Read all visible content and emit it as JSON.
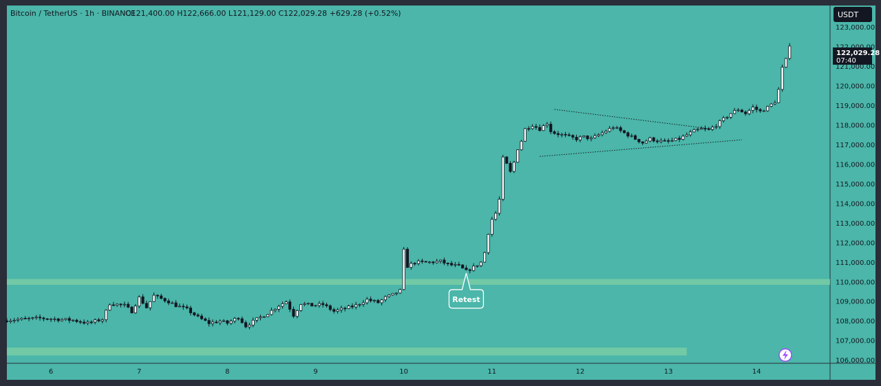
{
  "header": {
    "symbol": "Bitcoin / TetherUS · 1h · BINANCE",
    "ohlc": "O121,400.00  H122,666.00  L121,129.00  C122,029.28  +629.28 (+0.52%)"
  },
  "currency_button": "USDT",
  "last_price": {
    "price": "122,029.28",
    "countdown": "07:40"
  },
  "annotation": {
    "label": "Retest"
  },
  "colors": {
    "background": "#4bb6a9",
    "frame": "#2a2e39",
    "candle_up": "#ffffff",
    "candle_down": "#131722",
    "zone": "#7fcfa6",
    "retest_fill": "#4bb6a9",
    "lightning": "#9b4dff"
  },
  "chart_data": {
    "type": "candlestick",
    "title": "Bitcoin / TetherUS · 1h · BINANCE",
    "yaxis": {
      "ticks": [
        "123,000.00",
        "122,000.00",
        "121,000.00",
        "120,000.00",
        "119,000.00",
        "118,000.00",
        "117,000.00",
        "116,000.00",
        "115,000.00",
        "114,000.00",
        "113,000.00",
        "112,000.00",
        "111,000.00",
        "110,000.00",
        "109,000.00",
        "108,000.00",
        "107,000.00",
        "106,000.00"
      ],
      "tick_values": [
        123000,
        122000,
        121000,
        120000,
        119000,
        118000,
        117000,
        116000,
        115000,
        114000,
        113000,
        112000,
        111000,
        110000,
        109000,
        108000,
        107000,
        106000
      ],
      "range": [
        105850,
        124100
      ]
    },
    "xaxis": {
      "tick_labels": [
        "6",
        "7",
        "8",
        "9",
        "10",
        "11",
        "12",
        "13",
        "14"
      ],
      "tick_hours": [
        0,
        24,
        48,
        72,
        96,
        120,
        144,
        168,
        192
      ],
      "range_hours": [
        -12,
        212
      ]
    },
    "zones": [
      {
        "from": 109850,
        "to": 110150
      },
      {
        "from": 106250,
        "to": 106650,
        "until_hour": 173
      }
    ],
    "trendlines": [
      {
        "from": [
          137,
          118800
        ],
        "to": [
          180,
          117800
        ]
      },
      {
        "from": [
          133,
          116400
        ],
        "to": [
          188,
          117250
        ]
      }
    ],
    "annotation_point": {
      "hour": 113,
      "price": 110450
    },
    "anchors": [
      [
        -12,
        108050
      ],
      [
        -3,
        108150
      ],
      [
        6,
        108050
      ],
      [
        10,
        107900
      ],
      [
        14,
        108100
      ],
      [
        16,
        108900
      ],
      [
        20,
        108800
      ],
      [
        22,
        108500
      ],
      [
        24,
        109200
      ],
      [
        26,
        108700
      ],
      [
        28,
        109300
      ],
      [
        32,
        109000
      ],
      [
        34,
        108800
      ],
      [
        37,
        108600
      ],
      [
        40,
        108200
      ],
      [
        43,
        107900
      ],
      [
        46,
        108000
      ],
      [
        48,
        107900
      ],
      [
        51,
        108200
      ],
      [
        53,
        107750
      ],
      [
        56,
        108100
      ],
      [
        59,
        108400
      ],
      [
        62,
        108800
      ],
      [
        64,
        109000
      ],
      [
        66,
        108300
      ],
      [
        68,
        108900
      ],
      [
        71,
        108800
      ],
      [
        74,
        108850
      ],
      [
        77,
        108500
      ],
      [
        80,
        108650
      ],
      [
        83,
        108800
      ],
      [
        86,
        109100
      ],
      [
        89,
        108950
      ],
      [
        91,
        109200
      ],
      [
        93,
        109350
      ],
      [
        95,
        109550
      ],
      [
        96,
        111600
      ],
      [
        97,
        110800
      ],
      [
        99,
        111000
      ],
      [
        103,
        111000
      ],
      [
        106,
        111050
      ],
      [
        108,
        110900
      ],
      [
        111,
        110800
      ],
      [
        113,
        110550
      ],
      [
        115,
        110750
      ],
      [
        117,
        111000
      ],
      [
        118,
        111500
      ],
      [
        119,
        112500
      ],
      [
        120,
        113200
      ],
      [
        121,
        113500
      ],
      [
        122,
        114200
      ],
      [
        123,
        116300
      ],
      [
        124,
        116000
      ],
      [
        125,
        115600
      ],
      [
        126,
        116100
      ],
      [
        127,
        116800
      ],
      [
        128,
        117200
      ],
      [
        129,
        117800
      ],
      [
        131,
        118000
      ],
      [
        133,
        117800
      ],
      [
        135,
        118100
      ],
      [
        136,
        117700
      ],
      [
        137,
        117600
      ],
      [
        139,
        117500
      ],
      [
        141,
        117400
      ],
      [
        143,
        117300
      ],
      [
        145,
        117400
      ],
      [
        147,
        117300
      ],
      [
        149,
        117500
      ],
      [
        151,
        117700
      ],
      [
        153,
        117900
      ],
      [
        155,
        117700
      ],
      [
        157,
        117500
      ],
      [
        159,
        117300
      ],
      [
        161,
        117100
      ],
      [
        163,
        117300
      ],
      [
        165,
        117200
      ],
      [
        167,
        117150
      ],
      [
        169,
        117200
      ],
      [
        171,
        117300
      ],
      [
        173,
        117500
      ],
      [
        175,
        117700
      ],
      [
        177,
        117800
      ],
      [
        179,
        117750
      ],
      [
        181,
        118000
      ],
      [
        183,
        118300
      ],
      [
        185,
        118600
      ],
      [
        187,
        118800
      ],
      [
        189,
        118600
      ],
      [
        191,
        118900
      ],
      [
        193,
        118700
      ],
      [
        195,
        118900
      ],
      [
        197,
        119200
      ],
      [
        198,
        119800
      ],
      [
        199,
        120900
      ],
      [
        200,
        121400
      ],
      [
        201,
        122030
      ]
    ]
  }
}
